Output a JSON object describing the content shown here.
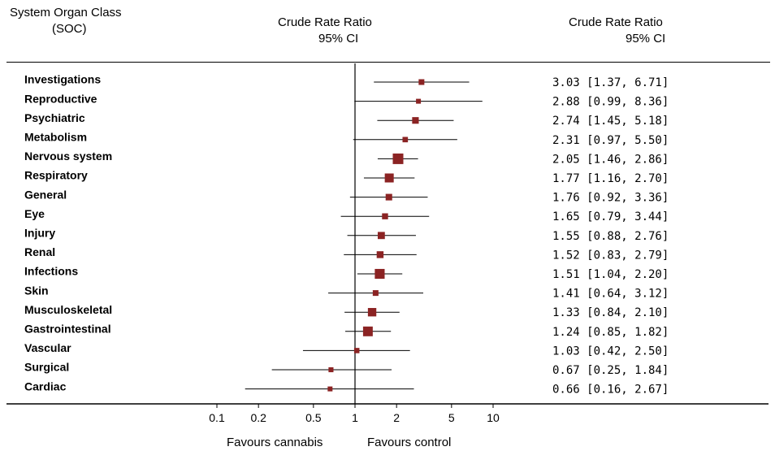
{
  "headers": {
    "soc_line1": "System Organ Class",
    "soc_line2": "(SOC)",
    "mid_line1": "Crude Rate Ratio",
    "mid_line2": "95% CI",
    "right_line1": "Crude Rate Ratio",
    "right_line2": "95% CI"
  },
  "footer": {
    "favours_left": "Favours cannabis",
    "favours_right": "Favours control"
  },
  "colors": {
    "marker": "#8b2323",
    "line": "#000000"
  },
  "chart_data": {
    "type": "forest",
    "scale": "log",
    "reference_value": 1,
    "xlim": [
      0.1,
      10
    ],
    "ticks": [
      0.1,
      0.2,
      0.5,
      1,
      2,
      5,
      10
    ],
    "tick_labels": [
      "0.1",
      "0.2",
      "0.5",
      "1",
      "2",
      "5",
      "10"
    ],
    "rows": [
      {
        "label": "Investigations",
        "estimate": 3.03,
        "lower": 1.37,
        "upper": 6.71,
        "ci_text": "3.03 [1.37, 6.71]"
      },
      {
        "label": "Reproductive",
        "estimate": 2.88,
        "lower": 0.99,
        "upper": 8.36,
        "ci_text": "2.88 [0.99, 8.36]"
      },
      {
        "label": "Psychiatric",
        "estimate": 2.74,
        "lower": 1.45,
        "upper": 5.18,
        "ci_text": "2.74 [1.45, 5.18]"
      },
      {
        "label": "Metabolism",
        "estimate": 2.31,
        "lower": 0.97,
        "upper": 5.5,
        "ci_text": "2.31 [0.97, 5.50]"
      },
      {
        "label": "Nervous system",
        "estimate": 2.05,
        "lower": 1.46,
        "upper": 2.86,
        "ci_text": "2.05 [1.46, 2.86]"
      },
      {
        "label": "Respiratory",
        "estimate": 1.77,
        "lower": 1.16,
        "upper": 2.7,
        "ci_text": "1.77 [1.16, 2.70]"
      },
      {
        "label": "General",
        "estimate": 1.76,
        "lower": 0.92,
        "upper": 3.36,
        "ci_text": "1.76 [0.92, 3.36]"
      },
      {
        "label": "Eye",
        "estimate": 1.65,
        "lower": 0.79,
        "upper": 3.44,
        "ci_text": "1.65 [0.79, 3.44]"
      },
      {
        "label": "Injury",
        "estimate": 1.55,
        "lower": 0.88,
        "upper": 2.76,
        "ci_text": "1.55 [0.88, 2.76]"
      },
      {
        "label": "Renal",
        "estimate": 1.52,
        "lower": 0.83,
        "upper": 2.79,
        "ci_text": "1.52 [0.83, 2.79]"
      },
      {
        "label": "Infections",
        "estimate": 1.51,
        "lower": 1.04,
        "upper": 2.2,
        "ci_text": "1.51 [1.04, 2.20]"
      },
      {
        "label": "Skin",
        "estimate": 1.41,
        "lower": 0.64,
        "upper": 3.12,
        "ci_text": "1.41 [0.64, 3.12]"
      },
      {
        "label": "Musculoskeletal",
        "estimate": 1.33,
        "lower": 0.84,
        "upper": 2.1,
        "ci_text": "1.33 [0.84, 2.10]"
      },
      {
        "label": "Gastrointestinal",
        "estimate": 1.24,
        "lower": 0.85,
        "upper": 1.82,
        "ci_text": "1.24 [0.85, 1.82]"
      },
      {
        "label": "Vascular",
        "estimate": 1.03,
        "lower": 0.42,
        "upper": 2.5,
        "ci_text": "1.03 [0.42, 2.50]"
      },
      {
        "label": "Surgical",
        "estimate": 0.67,
        "lower": 0.25,
        "upper": 1.84,
        "ci_text": "0.67 [0.25, 1.84]"
      },
      {
        "label": "Cardiac",
        "estimate": 0.66,
        "lower": 0.16,
        "upper": 2.67,
        "ci_text": "0.66 [0.16, 2.67]"
      }
    ]
  }
}
